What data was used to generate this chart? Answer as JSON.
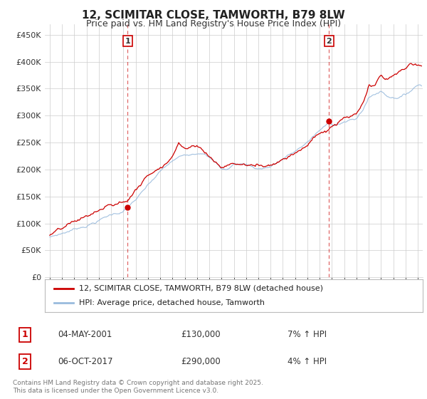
{
  "title": "12, SCIMITAR CLOSE, TAMWORTH, B79 8LW",
  "subtitle": "Price paid vs. HM Land Registry's House Price Index (HPI)",
  "title_fontsize": 11,
  "subtitle_fontsize": 9,
  "background_color": "#ffffff",
  "plot_bg_color": "#ffffff",
  "grid_color": "#cccccc",
  "red_color": "#cc0000",
  "blue_color": "#99bbdd",
  "ylim": [
    0,
    470000
  ],
  "yticks": [
    0,
    50000,
    100000,
    150000,
    200000,
    250000,
    300000,
    350000,
    400000,
    450000
  ],
  "ytick_labels": [
    "£0",
    "£50K",
    "£100K",
    "£150K",
    "£200K",
    "£250K",
    "£300K",
    "£350K",
    "£400K",
    "£450K"
  ],
  "legend_entry1": "12, SCIMITAR CLOSE, TAMWORTH, B79 8LW (detached house)",
  "legend_entry2": "HPI: Average price, detached house, Tamworth",
  "annotation1_label": "1",
  "annotation1_date": "04-MAY-2001",
  "annotation1_price": "£130,000",
  "annotation1_hpi": "7% ↑ HPI",
  "annotation2_label": "2",
  "annotation2_date": "06-OCT-2017",
  "annotation2_price": "£290,000",
  "annotation2_hpi": "4% ↑ HPI",
  "footer": "Contains HM Land Registry data © Crown copyright and database right 2025.\nThis data is licensed under the Open Government Licence v3.0.",
  "sale1_x": 2001.34,
  "sale1_y": 130000,
  "sale2_x": 2017.76,
  "sale2_y": 290000,
  "xlim_left": 1994.6,
  "xlim_right": 2025.4
}
